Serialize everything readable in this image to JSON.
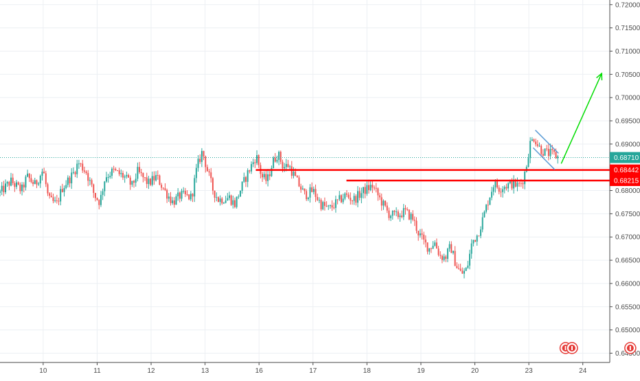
{
  "chart_data": {
    "type": "candlestick",
    "grid": true,
    "y_axis": {
      "side": "right",
      "ylim": [
        0.643,
        0.721
      ],
      "tick_labels": [
        "0.72000",
        "0.71500",
        "0.71000",
        "0.70500",
        "0.70000",
        "0.69500",
        "0.69000",
        "0.68500",
        "0.68000",
        "0.67500",
        "0.67000",
        "0.66500",
        "0.66000",
        "0.65500",
        "0.65000",
        "0.64500"
      ],
      "tick_values": [
        0.72,
        0.715,
        0.71,
        0.705,
        0.7,
        0.695,
        0.69,
        0.685,
        0.68,
        0.675,
        0.67,
        0.665,
        0.66,
        0.655,
        0.65,
        0.645
      ]
    },
    "x_axis": {
      "tick_labels": [
        "10",
        "11",
        "12",
        "13",
        "16",
        "17",
        "18",
        "19",
        "20",
        "23",
        "24"
      ],
      "tick_positions": [
        0.5,
        1.5,
        2.5,
        3.5,
        4.5,
        5.5,
        6.5,
        7.5,
        8.5,
        9.5,
        10.5
      ],
      "xlim": [
        -0.3,
        11.0
      ]
    },
    "price_path": [
      [
        -0.3,
        0.6795
      ],
      [
        -0.1,
        0.682
      ],
      [
        0.1,
        0.68
      ],
      [
        0.2,
        0.683
      ],
      [
        0.35,
        0.6812
      ],
      [
        0.5,
        0.6845
      ],
      [
        0.6,
        0.678
      ],
      [
        0.75,
        0.677
      ],
      [
        0.85,
        0.6805
      ],
      [
        1.05,
        0.6835
      ],
      [
        1.15,
        0.686
      ],
      [
        1.3,
        0.684
      ],
      [
        1.45,
        0.679
      ],
      [
        1.55,
        0.6775
      ],
      [
        1.65,
        0.683
      ],
      [
        1.8,
        0.6842
      ],
      [
        2.0,
        0.683
      ],
      [
        2.15,
        0.681
      ],
      [
        2.25,
        0.684
      ],
      [
        2.45,
        0.6815
      ],
      [
        2.6,
        0.683
      ],
      [
        2.75,
        0.68
      ],
      [
        2.9,
        0.6775
      ],
      [
        3.05,
        0.679
      ],
      [
        3.25,
        0.6785
      ],
      [
        3.35,
        0.685
      ],
      [
        3.45,
        0.6885
      ],
      [
        3.55,
        0.684
      ],
      [
        3.65,
        0.68
      ],
      [
        3.75,
        0.678
      ],
      [
        3.95,
        0.6785
      ],
      [
        4.05,
        0.677
      ],
      [
        4.15,
        0.68
      ],
      [
        4.3,
        0.684
      ],
      [
        4.45,
        0.6875
      ],
      [
        4.55,
        0.683
      ],
      [
        4.65,
        0.682
      ],
      [
        4.75,
        0.686
      ],
      [
        4.85,
        0.688
      ],
      [
        4.95,
        0.685
      ],
      [
        5.05,
        0.6855
      ],
      [
        5.2,
        0.682
      ],
      [
        5.35,
        0.679
      ],
      [
        5.5,
        0.68
      ],
      [
        5.65,
        0.677
      ],
      [
        5.8,
        0.676
      ],
      [
        5.95,
        0.6775
      ],
      [
        6.1,
        0.679
      ],
      [
        6.25,
        0.678
      ],
      [
        6.45,
        0.68
      ],
      [
        6.6,
        0.681
      ],
      [
        6.75,
        0.678
      ],
      [
        6.9,
        0.675
      ],
      [
        7.05,
        0.6745
      ],
      [
        7.2,
        0.6755
      ],
      [
        7.35,
        0.674
      ],
      [
        7.45,
        0.671
      ],
      [
        7.55,
        0.669
      ],
      [
        7.65,
        0.6675
      ],
      [
        7.75,
        0.669
      ],
      [
        7.85,
        0.666
      ],
      [
        7.95,
        0.6655
      ],
      [
        8.05,
        0.668
      ],
      [
        8.15,
        0.664
      ],
      [
        8.25,
        0.662
      ],
      [
        8.35,
        0.663
      ],
      [
        8.45,
        0.669
      ],
      [
        8.55,
        0.6705
      ],
      [
        8.65,
        0.674
      ],
      [
        8.75,
        0.678
      ],
      [
        8.85,
        0.6815
      ],
      [
        8.95,
        0.6805
      ],
      [
        9.05,
        0.681
      ],
      [
        9.2,
        0.6815
      ],
      [
        9.3,
        0.681
      ],
      [
        9.38,
        0.682
      ],
      [
        9.45,
        0.685
      ],
      [
        9.52,
        0.69
      ],
      [
        9.6,
        0.6915
      ],
      [
        9.68,
        0.6895
      ],
      [
        9.75,
        0.6885
      ],
      [
        9.85,
        0.688
      ],
      [
        9.95,
        0.6878
      ],
      [
        10.05,
        0.6871
      ]
    ],
    "candle_width_days": 0.034,
    "bull_color": "#26a69a",
    "bear_color": "#ef5350",
    "horizontal_levels": [
      {
        "value": 0.68442,
        "label": "0.68442",
        "color": "#ff0000",
        "x_start": 4.44,
        "style": "solid"
      },
      {
        "value": 0.68215,
        "label": "0.68215",
        "color": "#ff0000",
        "x_start": 6.12,
        "style": "solid"
      }
    ],
    "current_price": {
      "value": 0.6871,
      "label": "0.68710",
      "color": "#26a69a",
      "style": "dotted"
    },
    "drawings": {
      "flag_upper": {
        "points": [
          [
            9.62,
            0.693
          ],
          [
            10.05,
            0.688
          ]
        ],
        "color": "#5b9bd5"
      },
      "flag_lower": {
        "points": [
          [
            9.58,
            0.6892
          ],
          [
            9.98,
            0.6845
          ]
        ],
        "color": "#5b9bd5"
      },
      "arrow": {
        "points": [
          [
            10.1,
            0.6858
          ],
          [
            10.85,
            0.7052
          ]
        ],
        "color": "#00dd00"
      }
    },
    "markers": {
      "bottom_icons": [
        {
          "name": "news-icon",
          "x": 10.18,
          "color": "#e53935"
        },
        {
          "name": "flag-icon",
          "x": 10.3,
          "color": "#e53935"
        },
        {
          "name": "calendar-icon",
          "x": 11.38,
          "color": "#e53935"
        }
      ]
    },
    "colors": {
      "grid": "#eceff3",
      "axis_line": "#4a4a4a",
      "text": "#4a4a4a"
    }
  }
}
